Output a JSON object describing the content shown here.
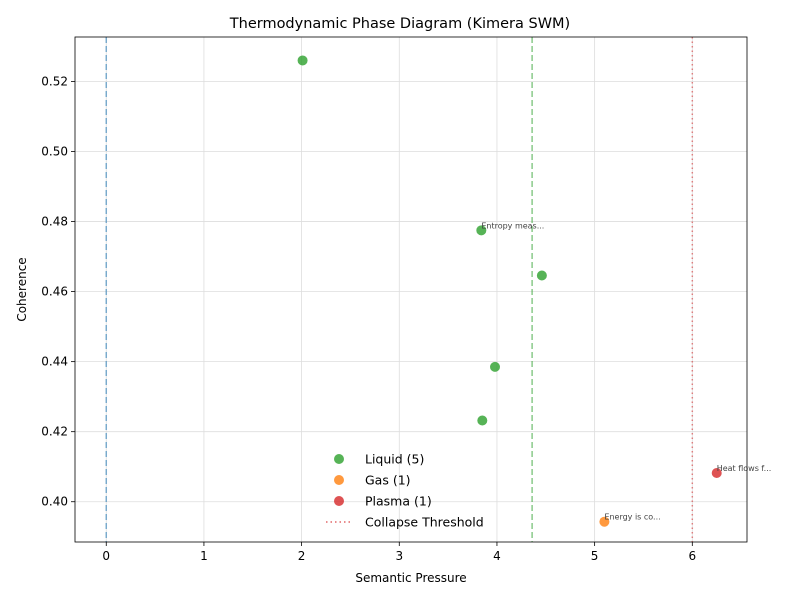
{
  "chart_data": {
    "type": "scatter",
    "title": "Thermodynamic Phase Diagram (Kimera SWM)",
    "xlabel": "Semantic Pressure",
    "ylabel": "Coherence",
    "xlim": [
      -0.32,
      6.56
    ],
    "ylim": [
      0.3885,
      0.5327
    ],
    "xticks": [
      0,
      1,
      2,
      3,
      4,
      5,
      6
    ],
    "yticks": [
      0.4,
      0.42,
      0.44,
      0.46,
      0.48,
      0.5,
      0.52
    ],
    "ytick_labels": [
      "0.40",
      "0.42",
      "0.44",
      "0.46",
      "0.48",
      "0.50",
      "0.52"
    ],
    "grid": true,
    "legend_position": "lower-center",
    "series": [
      {
        "name": "Liquid (5)",
        "color": "#2ca02c",
        "points": [
          {
            "x": 2.01,
            "y": 0.526
          },
          {
            "x": 3.84,
            "y": 0.4775
          },
          {
            "x": 4.46,
            "y": 0.4646
          },
          {
            "x": 3.98,
            "y": 0.4385
          },
          {
            "x": 3.85,
            "y": 0.4232
          }
        ]
      },
      {
        "name": "Gas (1)",
        "color": "#ff7f0e",
        "points": [
          {
            "x": 5.1,
            "y": 0.3943
          }
        ]
      },
      {
        "name": "Plasma (1)",
        "color": "#d62728",
        "points": [
          {
            "x": 6.25,
            "y": 0.4082
          }
        ]
      }
    ],
    "vlines": [
      {
        "x": 0.0,
        "color": "#1f77b4",
        "style": "dashed",
        "label": ""
      },
      {
        "x": 4.36,
        "color": "#2ca02c",
        "style": "dashed",
        "label": ""
      },
      {
        "x": 6.0,
        "color": "#d62728",
        "style": "dotted",
        "label": "Collapse Threshold"
      }
    ],
    "annotations": [
      {
        "text": "Entropy meas...",
        "x": 3.84,
        "y": 0.4775
      },
      {
        "text": "Energy is co...",
        "x": 5.1,
        "y": 0.3943
      },
      {
        "text": "Heat flows f...",
        "x": 6.25,
        "y": 0.4082
      }
    ]
  }
}
